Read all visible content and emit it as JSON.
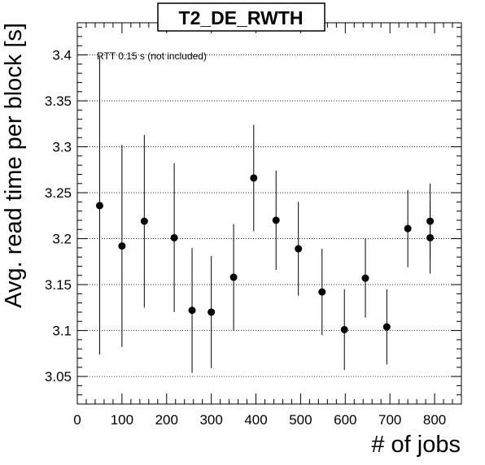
{
  "chart_data": {
    "type": "scatter",
    "title": "T2_DE_RWTH",
    "xlabel": "# of jobs",
    "ylabel": "Avg. read time per block [s]",
    "xlim": [
      0,
      860
    ],
    "ylim": [
      3.02,
      3.435
    ],
    "x_ticks": [
      0,
      100,
      200,
      300,
      400,
      500,
      600,
      700,
      800
    ],
    "y_ticks": [
      3.05,
      3.1,
      3.15,
      3.2,
      3.25,
      3.3,
      3.35,
      3.4
    ],
    "x_tick_labels": [
      "0",
      "100",
      "200",
      "300",
      "400",
      "500",
      "600",
      "700",
      "800"
    ],
    "y_tick_labels": [
      "3.05",
      "3.1",
      "3.15",
      "3.2",
      "3.25",
      "3.3",
      "3.35",
      "3.4"
    ],
    "grid": "horizontal dotted",
    "annotation": "RTT 0.15 s (not included)",
    "points": [
      {
        "x": 50,
        "y": 3.236,
        "err": 0.162
      },
      {
        "x": 100,
        "y": 3.192,
        "err": 0.11
      },
      {
        "x": 150,
        "y": 3.219,
        "err": 0.094
      },
      {
        "x": 217,
        "y": 3.201,
        "err": 0.081
      },
      {
        "x": 257,
        "y": 3.122,
        "err": 0.068
      },
      {
        "x": 300,
        "y": 3.12,
        "err": 0.061
      },
      {
        "x": 350,
        "y": 3.158,
        "err": 0.058
      },
      {
        "x": 395,
        "y": 3.266,
        "err": 0.058
      },
      {
        "x": 445,
        "y": 3.22,
        "err": 0.054
      },
      {
        "x": 495,
        "y": 3.189,
        "err": 0.051
      },
      {
        "x": 548,
        "y": 3.142,
        "err": 0.047
      },
      {
        "x": 598,
        "y": 3.101,
        "err": 0.044
      },
      {
        "x": 645,
        "y": 3.157,
        "err": 0.043
      },
      {
        "x": 693,
        "y": 3.104,
        "err": 0.041
      },
      {
        "x": 740,
        "y": 3.211,
        "err": 0.042
      },
      {
        "x": 790,
        "y": 3.219,
        "err": 0.041
      },
      {
        "x": 790,
        "y": 3.201,
        "err": 0.039
      }
    ]
  }
}
